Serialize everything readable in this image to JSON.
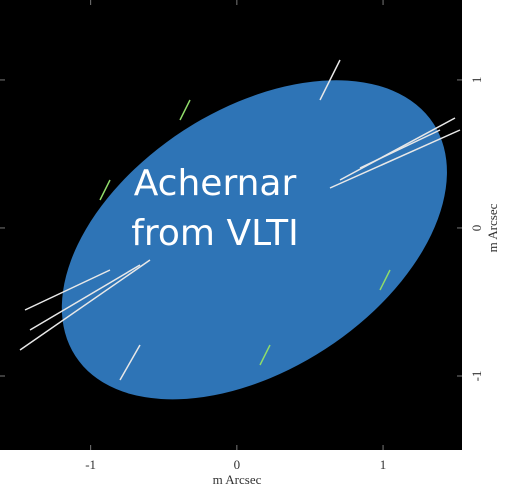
{
  "chart_data": {
    "type": "ellipse",
    "annotation": [
      "Achernar",
      "from VLTI"
    ],
    "xlabel": "m Arcsec",
    "ylabel": "m Arcsec",
    "xlim": [
      -1.62,
      1.54
    ],
    "ylim": [
      -1.5,
      1.54
    ],
    "xticks": [
      -1,
      0,
      1
    ],
    "yticks": [
      -1,
      0,
      1
    ],
    "ellipse": {
      "center": [
        0.12,
        -0.08
      ],
      "semi_major": 1.46,
      "semi_minor": 0.88,
      "angle": 33,
      "color": "#2e74b6"
    },
    "background": "#000000"
  }
}
